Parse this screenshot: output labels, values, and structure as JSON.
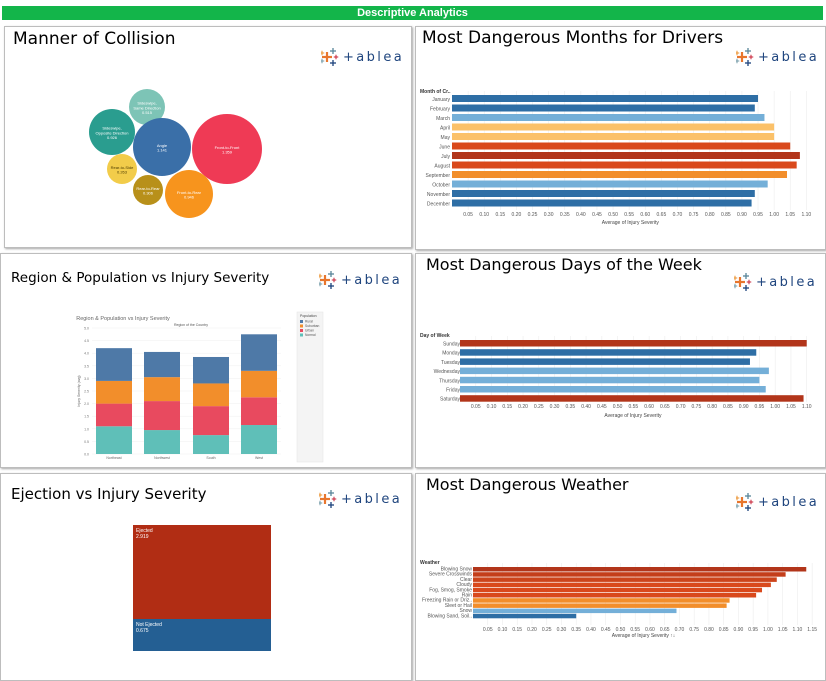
{
  "banner": "Descriptive Analytics",
  "logo_text": "+ableau",
  "colors": {
    "banner": "#13b54a",
    "red": "#b2351a",
    "blue_dark": "#2e6ea5",
    "blue_light": "#74afd8",
    "orange": "#f28e2b",
    "pink": "#e84a5f",
    "teal": "#5fbfb8"
  },
  "panels": {
    "collision": {
      "title": "Manner of Collision"
    },
    "months": {
      "title": "Most Dangerous Months for Drivers"
    },
    "region": {
      "title": "Region & Population vs Injury Severity"
    },
    "days": {
      "title": "Most Dangerous Days of the Week"
    },
    "ejection": {
      "title": "Ejection vs Injury Severity"
    },
    "weather": {
      "title": "Most Dangerous Weather"
    }
  },
  "chart_data": [
    {
      "id": "collision",
      "type": "bubble",
      "items": [
        {
          "label": "Sideswipe, Same Direction",
          "value": "0.515",
          "color": "#7dc4b6"
        },
        {
          "label": "Sideswipe, Opposite Direction",
          "value": "0.926",
          "color": "#2a9d8f"
        },
        {
          "label": "Angle",
          "value": "1.141",
          "color": "#3a6fa8"
        },
        {
          "label": "Front-to-Front",
          "value": "1.359",
          "color": "#ef3a55"
        },
        {
          "label": "Rear-to-Side",
          "value": "0.263",
          "color": "#f2cc4a"
        },
        {
          "label": "Rear-to-Rear",
          "value": "0.306",
          "color": "#b8901a"
        },
        {
          "label": "Front-to-Rear",
          "value": "0.946",
          "color": "#f7941d"
        }
      ]
    },
    {
      "id": "months",
      "type": "bar",
      "header": "Month of Cr..",
      "xlabel": "Average of Injury Severity",
      "ticks": [
        "0.05",
        "0.10",
        "0.15",
        "0.20",
        "0.25",
        "0.30",
        "0.35",
        "0.40",
        "0.45",
        "0.50",
        "0.55",
        "0.60",
        "0.65",
        "0.70",
        "0.75",
        "0.80",
        "0.85",
        "0.90",
        "0.95",
        "1.00",
        "1.05",
        "1.10"
      ],
      "xlim": [
        0,
        1.13
      ],
      "categories": [
        "January",
        "February",
        "March",
        "April",
        "May",
        "June",
        "July",
        "August",
        "September",
        "October",
        "November",
        "December"
      ],
      "values": [
        0.95,
        0.94,
        0.97,
        1.0,
        1.0,
        1.05,
        1.08,
        1.07,
        1.04,
        0.98,
        0.94,
        0.93
      ],
      "colors": [
        "#2e6ea5",
        "#2e6ea5",
        "#74afd8",
        "#fbc169",
        "#fbc169",
        "#d9491c",
        "#b2351a",
        "#d9491c",
        "#f28e2b",
        "#74afd8",
        "#2e6ea5",
        "#2e6ea5"
      ]
    },
    {
      "id": "region",
      "type": "stacked-bar",
      "title": "Region & Population vs Injury Severity",
      "header": "Region of the Country",
      "ylabel": "Injury Severity (avg)",
      "categories": [
        "Northeast",
        "Northwest",
        "South",
        "West"
      ],
      "yticks": [
        "0.0",
        "0.5",
        "1.0",
        "1.5",
        "2.0",
        "2.5",
        "3.0",
        "3.5",
        "4.0",
        "4.5",
        "5.0"
      ],
      "ylim": [
        0,
        5.0
      ],
      "legend_title": "Population",
      "series": [
        {
          "name": "Normal",
          "color": "#5fbfb8",
          "values": [
            1.1,
            0.95,
            0.75,
            1.15
          ]
        },
        {
          "name": "Urban",
          "color": "#e84a5f",
          "values": [
            0.9,
            1.15,
            1.15,
            1.1
          ]
        },
        {
          "name": "Suburban",
          "color": "#f28e2b",
          "values": [
            0.9,
            0.95,
            0.9,
            1.05
          ]
        },
        {
          "name": "Rural",
          "color": "#4e79a7",
          "values": [
            1.3,
            1.0,
            1.05,
            1.45
          ]
        }
      ]
    },
    {
      "id": "days",
      "type": "bar",
      "header": "Day of Week",
      "xlabel": "Average of Injury Severity",
      "ticks": [
        "0.05",
        "0.10",
        "0.15",
        "0.20",
        "0.25",
        "0.30",
        "0.35",
        "0.40",
        "0.45",
        "0.50",
        "0.55",
        "0.60",
        "0.65",
        "0.70",
        "0.75",
        "0.80",
        "0.85",
        "0.90",
        "0.95",
        "1.00",
        "1.05",
        "1.10"
      ],
      "xlim": [
        0,
        1.12
      ],
      "categories": [
        "Sunday",
        "Monday",
        "Tuesday",
        "Wednesday",
        "Thursday",
        "Friday",
        "Saturday"
      ],
      "values": [
        1.1,
        0.94,
        0.92,
        0.98,
        0.95,
        0.97,
        1.09
      ],
      "colors": [
        "#b2351a",
        "#2e6ea5",
        "#2e6ea5",
        "#74afd8",
        "#74afd8",
        "#74afd8",
        "#b2351a"
      ]
    },
    {
      "id": "ejection",
      "type": "treemap",
      "items": [
        {
          "label": "Ejected",
          "value": "2.919",
          "color": "#b12d14"
        },
        {
          "label": "Not Ejected",
          "value": "0.675",
          "color": "#245f93"
        }
      ]
    },
    {
      "id": "weather",
      "type": "bar",
      "header": "Weather",
      "xlabel": "Average of Injury Severity ↑↓",
      "ticks": [
        "0.05",
        "0.10",
        "0.15",
        "0.20",
        "0.25",
        "0.30",
        "0.35",
        "0.40",
        "0.45",
        "0.50",
        "0.55",
        "0.60",
        "0.65",
        "0.70",
        "0.75",
        "0.80",
        "0.85",
        "0.90",
        "0.95",
        "1.00",
        "1.05",
        "1.10",
        "1.15"
      ],
      "xlim": [
        0,
        1.18
      ],
      "categories": [
        "Blowing Snow",
        "Severe Crosswinds",
        "Clear",
        "Cloudy",
        "Fog, Smog, Smoke",
        "Rain",
        "Freezing Rain or Driz..",
        "Sleet or Hail",
        "Snow",
        "Blowing Sand, Soil.."
      ],
      "values": [
        1.13,
        1.06,
        1.03,
        1.01,
        0.98,
        0.96,
        0.87,
        0.86,
        0.69,
        0.35
      ],
      "colors": [
        "#b2351a",
        "#c43e1a",
        "#cc441b",
        "#d9491c",
        "#d9491c",
        "#d9491c",
        "#f28e2b",
        "#f28e2b",
        "#74afd8",
        "#2e6ea5"
      ]
    }
  ]
}
